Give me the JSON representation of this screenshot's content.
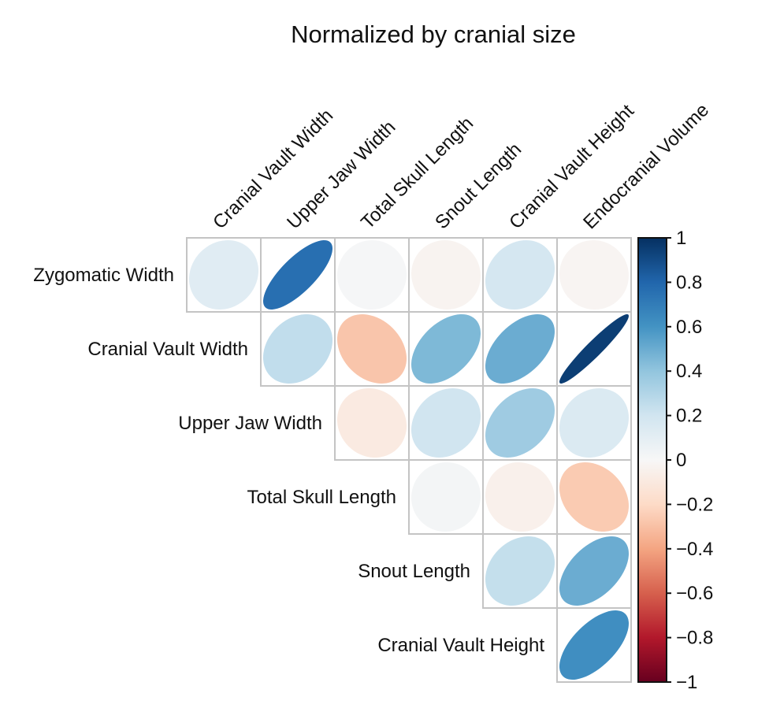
{
  "chart_data": {
    "type": "heatmap",
    "title": "Normalized by cranial size",
    "shape": "ellipse",
    "layout": "upper-triangle",
    "columns": [
      "Cranial Vault Width",
      "Upper Jaw Width",
      "Total Skull Length",
      "Snout Length",
      "Cranial Vault Height",
      "Endocranial Volume"
    ],
    "rows": [
      "Zygomatic Width",
      "Cranial Vault Width",
      "Upper Jaw Width",
      "Total Skull Length",
      "Snout Length",
      "Cranial Vault Height"
    ],
    "values": [
      [
        0.12,
        0.76,
        0.01,
        -0.03,
        0.18,
        -0.02
      ],
      [
        null,
        0.25,
        -0.28,
        0.45,
        0.5,
        0.95
      ],
      [
        null,
        null,
        -0.09,
        0.2,
        0.36,
        0.15
      ],
      [
        null,
        null,
        null,
        0.02,
        -0.05,
        -0.26
      ],
      [
        null,
        null,
        null,
        null,
        0.24,
        0.5
      ],
      [
        null,
        null,
        null,
        null,
        null,
        0.62
      ]
    ],
    "colorbar": {
      "range": [
        -1,
        1
      ],
      "ticks": [
        "1",
        "0.8",
        "0.6",
        "0.4",
        "0.2",
        "0",
        "−0.2",
        "−0.4",
        "−0.6",
        "−0.8",
        "−1"
      ],
      "colors": [
        "#67001f",
        "#b2182b",
        "#d6604d",
        "#f4a582",
        "#fddbc7",
        "#f7f7f7",
        "#d1e5f0",
        "#92c5de",
        "#4393c3",
        "#2166ac",
        "#053061"
      ]
    }
  }
}
